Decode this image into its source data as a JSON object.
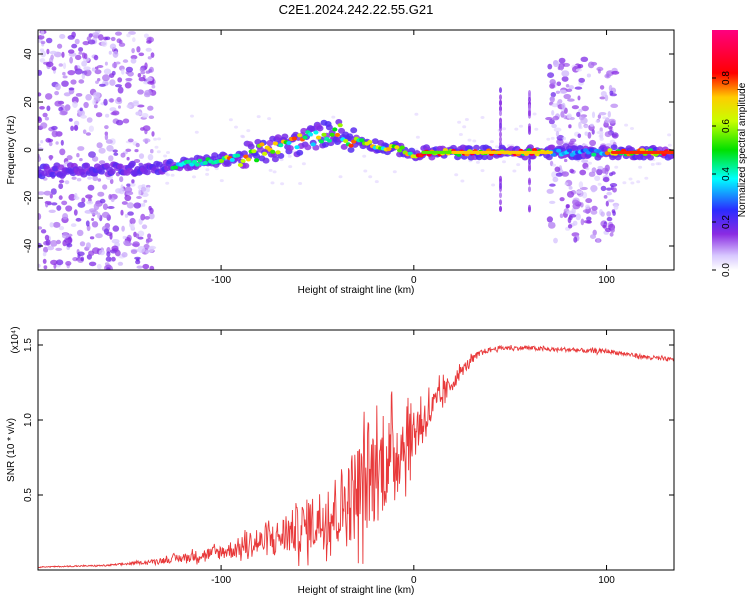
{
  "figure_title": "C2E1.2024.242.22.55.G21",
  "colors": {
    "snr_line": "#e8393a",
    "axis": "#000000",
    "spectrum_purple": "#8a2be2"
  },
  "chart_data": [
    {
      "type": "heatmap",
      "title": "C2E1.2024.242.22.55.G21",
      "xlabel": "Height of straight line (km)",
      "ylabel": "Frequency (Hz)",
      "xlim": [
        -195,
        135
      ],
      "ylim": [
        -50,
        50
      ],
      "x_ticks": [
        "-100",
        "0",
        "100"
      ],
      "x_tick_values": [
        -100,
        0,
        100
      ],
      "y_ticks": [
        "-40",
        "-20",
        "0",
        "20",
        "40"
      ],
      "y_tick_values": [
        -40,
        -20,
        0,
        20,
        40
      ],
      "colorbar": {
        "label": "Normalized spectral amplitude",
        "range": [
          0,
          1
        ],
        "ticks": [
          "0.0",
          "0.2",
          "0.4",
          "0.6",
          "0.8"
        ],
        "tick_values": [
          0.0,
          0.2,
          0.4,
          0.6,
          0.8
        ],
        "colormap": "rainbow (white-purple-blue-cyan-green-yellow-red-magenta)"
      },
      "ridge": {
        "x": [
          -195,
          -170,
          -150,
          -130,
          -110,
          -90,
          -75,
          -60,
          -50,
          -40,
          -35,
          -25,
          -15,
          -5,
          0,
          5,
          20,
          40,
          60,
          80,
          100,
          120,
          135
        ],
        "y": [
          -9,
          -8,
          -8,
          -7,
          -5,
          -3,
          0,
          3,
          6,
          8,
          5,
          3,
          1,
          0,
          -3,
          -1,
          -1,
          -1,
          -1,
          -1,
          -1,
          -1,
          -1
        ]
      },
      "noise_regions": [
        [
          -195,
          -135
        ],
        [
          70,
          105
        ]
      ]
    },
    {
      "type": "line",
      "xlabel": "Height of straight line (km)",
      "ylabel": "SNR (10 * v/v)",
      "y_multiplier": "(x10⁴)",
      "xlim": [
        -195,
        135
      ],
      "ylim": [
        0,
        1.6
      ],
      "x_ticks": [
        "-100",
        "0",
        "100"
      ],
      "x_tick_values": [
        -100,
        0,
        100
      ],
      "y_ticks": [
        "0.5",
        "1.0",
        "1.5"
      ],
      "y_tick_values": [
        0.5,
        1.0,
        1.5
      ],
      "series": [
        {
          "x": [
            -195,
            -160,
            -140,
            -120,
            -100,
            -90,
            -80,
            -70,
            -60,
            -50,
            -40,
            -35,
            -30,
            -25,
            -20,
            -15,
            -10,
            -5,
            0,
            5,
            10,
            15,
            20,
            25,
            30,
            35,
            40,
            45,
            50,
            60,
            70,
            80,
            90,
            100,
            110,
            120,
            135
          ],
          "y": [
            0.02,
            0.03,
            0.05,
            0.08,
            0.12,
            0.15,
            0.18,
            0.22,
            0.27,
            0.33,
            0.4,
            0.45,
            0.52,
            0.58,
            0.65,
            0.7,
            0.78,
            0.85,
            0.92,
            1.0,
            1.08,
            1.16,
            1.25,
            1.33,
            1.4,
            1.45,
            1.47,
            1.48,
            1.48,
            1.48,
            1.47,
            1.47,
            1.46,
            1.46,
            1.44,
            1.42,
            1.4
          ],
          "noise": [
            0.003,
            0.005,
            0.01,
            0.03,
            0.05,
            0.07,
            0.09,
            0.12,
            0.16,
            0.2,
            0.25,
            0.3,
            0.32,
            0.35,
            0.35,
            0.3,
            0.28,
            0.25,
            0.2,
            0.15,
            0.12,
            0.1,
            0.06,
            0.04,
            0.03,
            0.02,
            0.015,
            0.015,
            0.015,
            0.015,
            0.015,
            0.015,
            0.015,
            0.015,
            0.015,
            0.015,
            0.015
          ]
        }
      ]
    }
  ]
}
